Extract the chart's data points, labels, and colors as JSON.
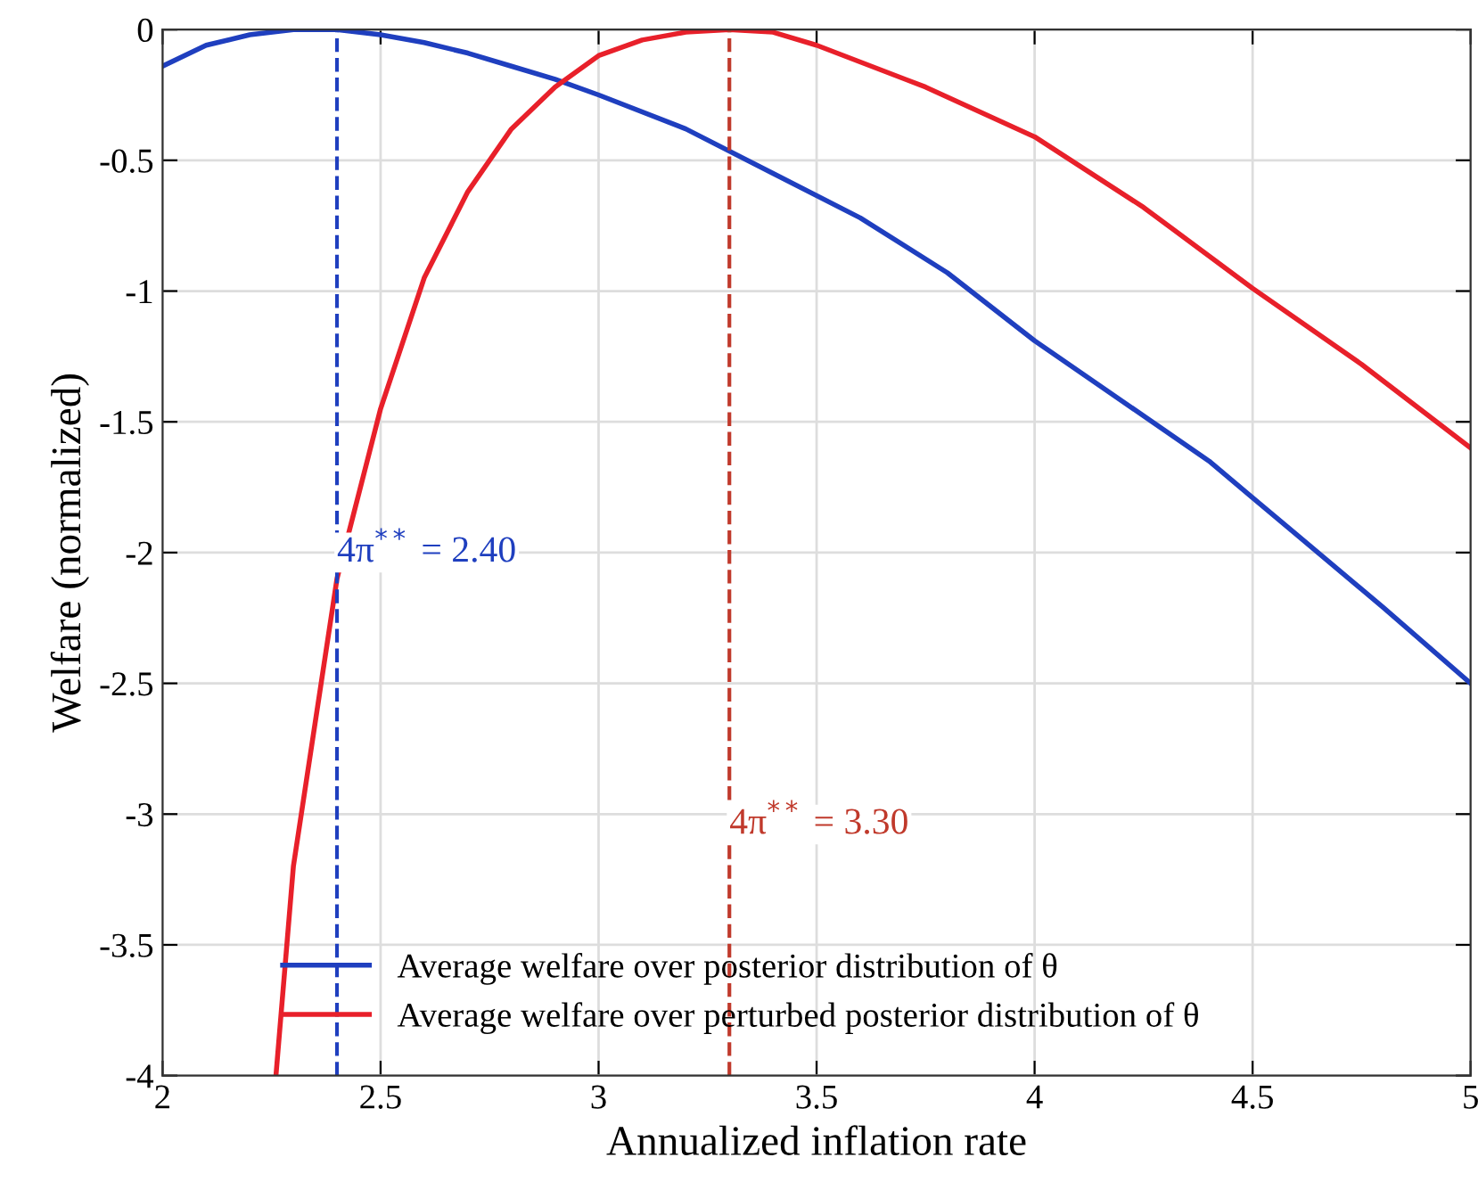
{
  "chart_data": {
    "type": "line",
    "xlabel": "Annualized inflation rate",
    "ylabel": "Welfare (normalized)",
    "xlim": [
      2,
      5
    ],
    "xticks": [
      2,
      2.5,
      3,
      3.5,
      4,
      4.5,
      5
    ],
    "ylim": [
      -4,
      0
    ],
    "yticks": [
      -4,
      -3.5,
      -3,
      -2.5,
      -2,
      -1.5,
      -1,
      -0.5,
      0
    ],
    "grid": true,
    "legend": "bottom left",
    "line_style": "solid",
    "marker": "none",
    "series": [
      {
        "name": "Average welfare over posterior distribution of θ",
        "color": "#1f3fbf",
        "x": [
          2.0,
          2.1,
          2.2,
          2.3,
          2.4,
          2.5,
          2.6,
          2.7,
          2.8,
          2.9,
          3.0,
          3.2,
          3.4,
          3.6,
          3.8,
          4.0,
          4.2,
          4.4,
          4.5,
          4.6,
          4.8,
          5.0
        ],
        "values": [
          -0.14,
          -0.06,
          -0.02,
          0,
          0,
          -0.02,
          -0.05,
          -0.09,
          -0.14,
          -0.19,
          -0.25,
          -0.38,
          -0.55,
          -0.72,
          -0.93,
          -1.19,
          -1.42,
          -1.65,
          -1.79,
          -1.93,
          -2.21,
          -2.5
        ]
      },
      {
        "name": "Average welfare over perturbed posterior distribution of θ",
        "color": "#e8202a",
        "x": [
          2.26,
          2.3,
          2.4,
          2.5,
          2.6,
          2.7,
          2.8,
          2.9,
          3.0,
          3.1,
          3.2,
          3.3,
          3.4,
          3.5,
          3.75,
          4.0,
          4.25,
          4.5,
          4.75,
          5.0
        ],
        "values": [
          -4,
          -3.2,
          -2.1,
          -1.45,
          -0.95,
          -0.62,
          -0.38,
          -0.22,
          -0.1,
          -0.04,
          -0.01,
          0,
          -0.01,
          -0.06,
          -0.22,
          -0.41,
          -0.68,
          -0.99,
          -1.28,
          -1.6
        ]
      }
    ],
    "ref_lines": [
      {
        "axis": "x",
        "value": 2.4,
        "label": "4π$^{**}$ = 2.40",
        "color": "#1f3fbf",
        "line_style": "dashed"
      },
      {
        "axis": "x",
        "value": 3.3,
        "label": "4π$^{**}$ = 3.30",
        "color": "#c0392b",
        "line_style": "dashed"
      }
    ]
  }
}
